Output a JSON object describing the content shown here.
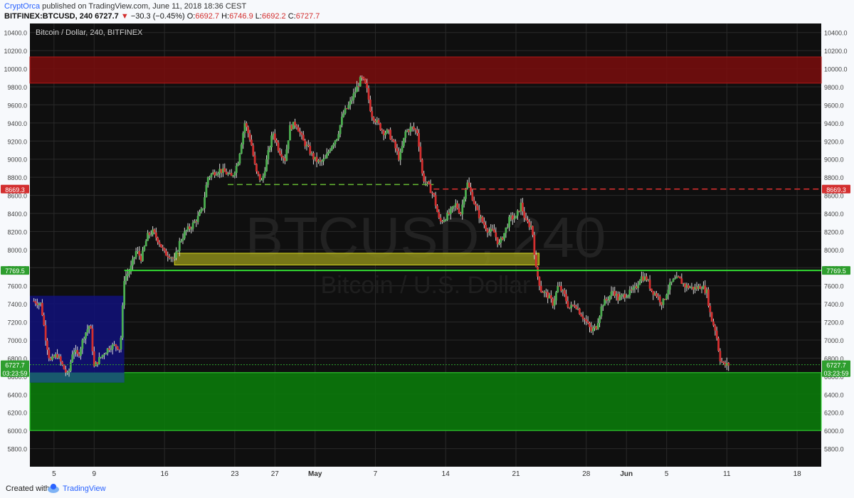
{
  "header": {
    "author": "CryptOrca",
    "published_text": " published on TradingView.com, June 11, 2018 18:36 CEST",
    "symbol": "BITFINEX:BTCUSD, 240",
    "last_price": "6727.7",
    "change_arrow": "▼",
    "change": "−30.3 (−0.45%)",
    "open_label": "O:",
    "open": "6692.7",
    "high_label": "H:",
    "high": "6746.9",
    "low_label": "L:",
    "low": "6692.2",
    "close_label": "C:",
    "close": "6727.7"
  },
  "footer": {
    "created_with": "Created with",
    "brand": "TradingView"
  },
  "colors": {
    "background": "#0f0f0f",
    "grid": "#2a2a2a",
    "up_candle": "#4caf50",
    "down_candle": "#d32f2f",
    "neutral_candle": "#d8d8d8",
    "resistance_zone": "#7a0d0d",
    "support_zone": "#0b7a0b",
    "yellow_zone": "#8a8a1a",
    "blue_zone": "#11117a",
    "green_line": "#33dd33",
    "red_dashed": "#e03030",
    "green_dashed": "#66bb33"
  },
  "chart_data": {
    "type": "candlestick",
    "title": "Bitcoin / Dollar, 240, BITFINEX",
    "watermark_symbol": "BTCUSD, 240",
    "watermark_name": "Bitcoin / U.S. Dollar",
    "ylim": [
      5600,
      10500
    ],
    "y_ticks": [
      5800,
      6000,
      6200,
      6400,
      6600,
      6800,
      7000,
      7200,
      7400,
      7600,
      7800,
      8000,
      8200,
      8400,
      8600,
      8800,
      9000,
      9200,
      9400,
      9600,
      9800,
      10000,
      10200,
      10400
    ],
    "x_ticks": [
      {
        "day": 5,
        "label": "5"
      },
      {
        "day": 9,
        "label": "9"
      },
      {
        "day": 16,
        "label": "16"
      },
      {
        "day": 23,
        "label": "23"
      },
      {
        "day": 27,
        "label": "27"
      },
      {
        "day": 31,
        "label": "May"
      },
      {
        "day": 37,
        "label": "7"
      },
      {
        "day": 44,
        "label": "14"
      },
      {
        "day": 51,
        "label": "21"
      },
      {
        "day": 58,
        "label": "28"
      },
      {
        "day": 62,
        "label": "Jun"
      },
      {
        "day": 66,
        "label": "5"
      },
      {
        "day": 72,
        "label": "11"
      },
      {
        "day": 79,
        "label": "18"
      }
    ],
    "x_range_days": [
      2.6,
      81.4
    ],
    "grid": true,
    "price_path": [
      [
        3.0,
        7430
      ],
      [
        3.7,
        7400
      ],
      [
        4.2,
        7000
      ],
      [
        4.6,
        6760
      ],
      [
        5.3,
        6840
      ],
      [
        5.9,
        6700
      ],
      [
        6.4,
        6600
      ],
      [
        6.9,
        6900
      ],
      [
        7.4,
        6820
      ],
      [
        8.0,
        7050
      ],
      [
        8.6,
        7180
      ],
      [
        9.0,
        6700
      ],
      [
        9.3,
        6760
      ],
      [
        10.0,
        6860
      ],
      [
        10.6,
        6930
      ],
      [
        11.2,
        6940
      ],
      [
        11.6,
        6900
      ],
      [
        12.0,
        7680
      ],
      [
        12.6,
        7780
      ],
      [
        13.2,
        7990
      ],
      [
        13.7,
        7900
      ],
      [
        14.3,
        8150
      ],
      [
        14.8,
        8200
      ],
      [
        15.4,
        8100
      ],
      [
        16.0,
        7960
      ],
      [
        16.5,
        7940
      ],
      [
        17.0,
        7880
      ],
      [
        17.5,
        8080
      ],
      [
        18.1,
        8200
      ],
      [
        18.7,
        8260
      ],
      [
        19.3,
        8350
      ],
      [
        19.8,
        8450
      ],
      [
        20.3,
        8800
      ],
      [
        20.9,
        8850
      ],
      [
        21.5,
        8880
      ],
      [
        22.1,
        8850
      ],
      [
        22.7,
        8800
      ],
      [
        23.3,
        8960
      ],
      [
        24.0,
        9400
      ],
      [
        24.6,
        9200
      ],
      [
        25.1,
        8860
      ],
      [
        25.7,
        8750
      ],
      [
        26.2,
        9000
      ],
      [
        26.8,
        9300
      ],
      [
        27.4,
        9100
      ],
      [
        28.0,
        9000
      ],
      [
        28.5,
        9350
      ],
      [
        29.1,
        9400
      ],
      [
        29.8,
        9200
      ],
      [
        30.3,
        9120
      ],
      [
        30.9,
        9000
      ],
      [
        31.5,
        8960
      ],
      [
        32.0,
        9000
      ],
      [
        32.6,
        9150
      ],
      [
        33.2,
        9250
      ],
      [
        33.8,
        9500
      ],
      [
        34.4,
        9600
      ],
      [
        35.0,
        9750
      ],
      [
        35.6,
        9900
      ],
      [
        36.1,
        9800
      ],
      [
        36.6,
        9500
      ],
      [
        37.2,
        9400
      ],
      [
        37.8,
        9300
      ],
      [
        38.3,
        9300
      ],
      [
        38.9,
        9150
      ],
      [
        39.4,
        9000
      ],
      [
        40.0,
        9300
      ],
      [
        40.6,
        9350
      ],
      [
        41.2,
        9300
      ],
      [
        41.7,
        8800
      ],
      [
        42.3,
        8700
      ],
      [
        42.8,
        8600
      ],
      [
        43.4,
        8300
      ],
      [
        43.9,
        8350
      ],
      [
        44.4,
        8400
      ],
      [
        45.0,
        8500
      ],
      [
        45.5,
        8400
      ],
      [
        46.1,
        8750
      ],
      [
        46.6,
        8600
      ],
      [
        47.2,
        8400
      ],
      [
        47.7,
        8300
      ],
      [
        48.3,
        8200
      ],
      [
        48.8,
        8200
      ],
      [
        49.3,
        8050
      ],
      [
        49.9,
        8200
      ],
      [
        50.4,
        8350
      ],
      [
        51.0,
        8350
      ],
      [
        51.5,
        8500
      ],
      [
        52.0,
        8300
      ],
      [
        52.6,
        8250
      ],
      [
        53.0,
        7780
      ],
      [
        53.5,
        7550
      ],
      [
        54.1,
        7500
      ],
      [
        54.7,
        7400
      ],
      [
        55.2,
        7600
      ],
      [
        55.8,
        7500
      ],
      [
        56.3,
        7350
      ],
      [
        56.9,
        7400
      ],
      [
        57.4,
        7300
      ],
      [
        58.0,
        7200
      ],
      [
        58.5,
        7100
      ],
      [
        59.0,
        7150
      ],
      [
        59.6,
        7400
      ],
      [
        60.1,
        7450
      ],
      [
        60.7,
        7550
      ],
      [
        61.2,
        7450
      ],
      [
        61.8,
        7500
      ],
      [
        62.3,
        7520
      ],
      [
        62.9,
        7570
      ],
      [
        63.4,
        7700
      ],
      [
        64.0,
        7680
      ],
      [
        64.5,
        7550
      ],
      [
        65.0,
        7500
      ],
      [
        65.6,
        7400
      ],
      [
        66.1,
        7560
      ],
      [
        66.6,
        7650
      ],
      [
        67.2,
        7680
      ],
      [
        67.8,
        7600
      ],
      [
        68.4,
        7580
      ],
      [
        68.9,
        7570
      ],
      [
        69.5,
        7600
      ],
      [
        70.0,
        7530
      ],
      [
        70.4,
        7250
      ],
      [
        70.9,
        7100
      ],
      [
        71.3,
        6800
      ],
      [
        71.7,
        6720
      ],
      [
        72.2,
        6728
      ]
    ],
    "zones": [
      {
        "name": "resistance",
        "x_start_day": 2.6,
        "x_end_day": 81.4,
        "y_low": 9840,
        "y_high": 10130
      },
      {
        "name": "support",
        "x_start_day": 2.6,
        "x_end_day": 81.4,
        "y_low": 6000,
        "y_high": 6640
      },
      {
        "name": "yellow",
        "x_start_day": 17.0,
        "x_end_day": 53.3,
        "y_low": 7830,
        "y_high": 7960
      },
      {
        "name": "blue",
        "x_start_day": 2.6,
        "x_end_day": 12.0,
        "y_low": 6530,
        "y_high": 7490
      },
      {
        "name": "blue-lower",
        "x_start_day": 2.6,
        "x_end_day": 12.0,
        "y_low": 6530,
        "y_high": 6640
      }
    ],
    "lines": [
      {
        "name": "support-line",
        "style": "solid",
        "color": "green",
        "y": 7769.5,
        "x_start_day": 12.0,
        "x_end_day": 81.4
      },
      {
        "name": "neck-line",
        "style": "dashed",
        "color": "green",
        "y": 8720,
        "x_start_day": 22.3,
        "x_end_day": 42.8
      },
      {
        "name": "resistance-line",
        "style": "dashed",
        "color": "red",
        "y": 8669.3,
        "x_start_day": 42.8,
        "x_end_day": 81.4
      }
    ],
    "price_labels": [
      {
        "text": "8669.3",
        "y": 8669.3,
        "color": "#d32f2f"
      },
      {
        "text": "7769.5",
        "y": 7769.5,
        "color": "#2e9e2e"
      },
      {
        "text": "6727.7",
        "y": 6727.7,
        "color": "#2e9e2e"
      },
      {
        "text": "03:23:59",
        "y": 6640,
        "color": "#2e9e2e"
      }
    ]
  }
}
